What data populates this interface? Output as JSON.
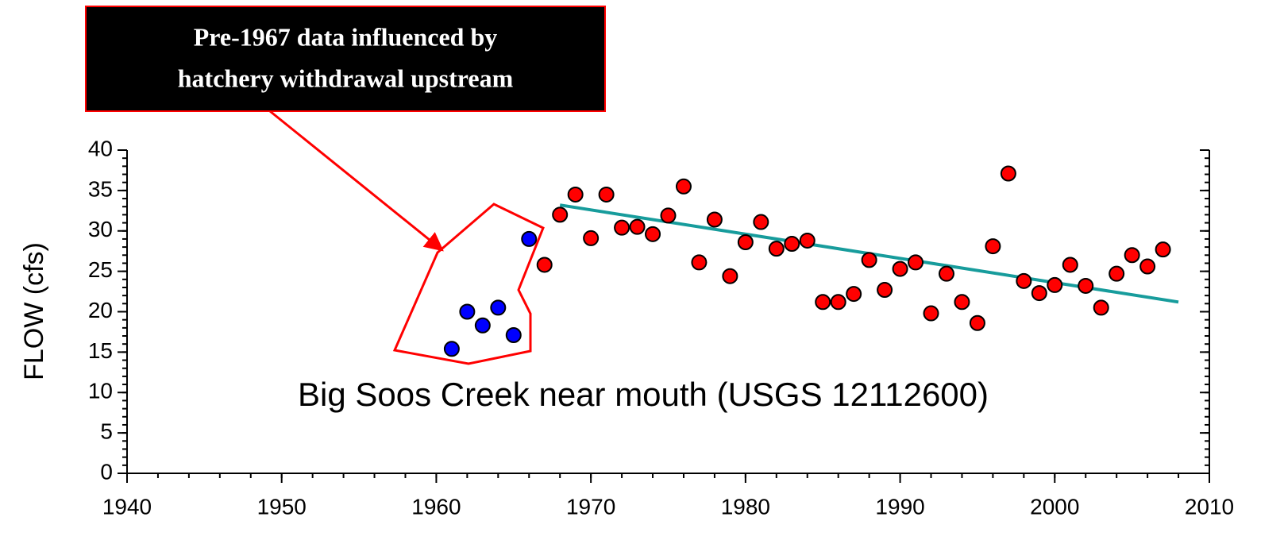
{
  "chart_data": {
    "type": "scatter",
    "ylabel": "FLOW (cfs)",
    "annotation": "Big Soos Creek near mouth (USGS 12112600)",
    "callout": [
      "Pre-1967 data influenced by",
      "hatchery withdrawal upstream"
    ],
    "xlim": [
      1940,
      2010
    ],
    "xticks": [
      1940,
      1950,
      1960,
      1970,
      1980,
      1990,
      2000,
      2010
    ],
    "ylim": [
      0,
      40
    ],
    "yticks": [
      0,
      5,
      10,
      15,
      20,
      25,
      30,
      35,
      40
    ],
    "series": [
      {
        "color": "#0000ff",
        "x": [
          1961,
          1962,
          1963,
          1964,
          1965,
          1966
        ],
        "values": [
          15.4,
          20.0,
          18.3,
          20.5,
          17.1,
          29.0
        ]
      },
      {
        "color": "#ff0000",
        "x": [
          1967,
          1968,
          1969,
          1970,
          1971,
          1972,
          1973,
          1974,
          1975,
          1976,
          1977,
          1978,
          1979,
          1980,
          1981,
          1982,
          1983,
          1984,
          1985,
          1986,
          1987,
          1988,
          1989,
          1990,
          1991,
          1992,
          1993,
          1994,
          1995,
          1996,
          1997,
          1998,
          1999,
          2000,
          2001,
          2002,
          2003,
          2004,
          2005,
          2006,
          2007
        ],
        "values": [
          25.8,
          32.0,
          34.5,
          29.1,
          34.5,
          30.4,
          30.5,
          29.6,
          31.9,
          35.5,
          26.1,
          31.4,
          24.4,
          28.6,
          31.1,
          27.8,
          28.4,
          28.8,
          21.2,
          21.2,
          22.2,
          26.4,
          22.7,
          25.3,
          26.1,
          19.8,
          24.7,
          21.2,
          18.6,
          28.1,
          37.1,
          23.8,
          22.3,
          23.3,
          25.8,
          23.2,
          20.5,
          24.7,
          27.0,
          25.6,
          27.7
        ]
      }
    ],
    "trendline": {
      "color": "#179c9c",
      "x": [
        1968,
        2008
      ],
      "values": [
        33.2,
        21.2
      ]
    }
  }
}
